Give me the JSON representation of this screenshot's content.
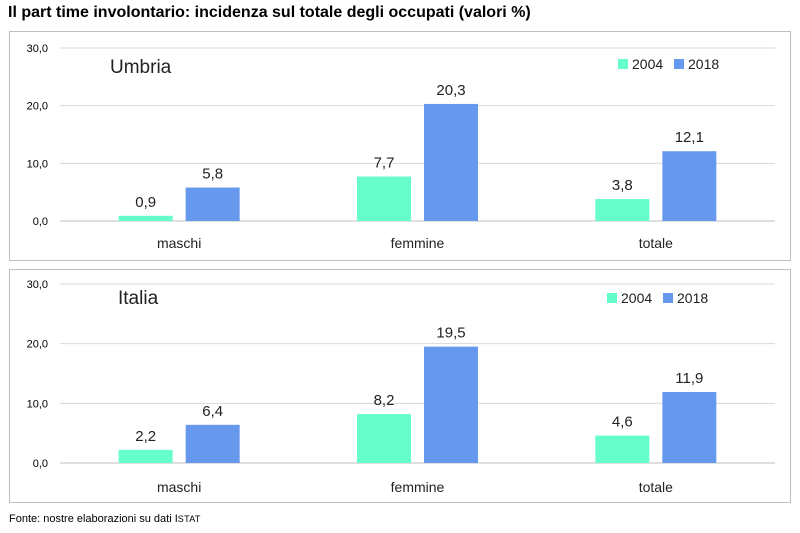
{
  "title": "Il part time involontario: incidenza sul totale degli occupati (valori %)",
  "source": {
    "prefix": "Fonte: nostre elaborazioni su dati ",
    "initial": "I",
    "rest": "STAT"
  },
  "colors": {
    "s2004": "#66ffcc",
    "s2018": "#6699ee",
    "grid": "#d9d9d9",
    "axis": "#bfbfbf"
  },
  "chart_data": [
    {
      "type": "bar",
      "title": "Umbria",
      "categories": [
        "maschi",
        "femmine",
        "totale"
      ],
      "series": [
        {
          "name": "2004",
          "values": [
            0.9,
            7.7,
            3.8
          ],
          "labels": [
            "0,9",
            "7,7",
            "3,8"
          ]
        },
        {
          "name": "2018",
          "values": [
            5.8,
            20.3,
            12.1
          ],
          "labels": [
            "5,8",
            "20,3",
            "12,1"
          ]
        }
      ],
      "ylim": [
        0,
        30
      ],
      "yticks": [
        0,
        10,
        20,
        30
      ],
      "ytick_labels": [
        "0,0",
        "10,0",
        "20,0",
        "30,0"
      ],
      "grid": true,
      "legend": "top-right"
    },
    {
      "type": "bar",
      "title": "Italia",
      "categories": [
        "maschi",
        "femmine",
        "totale"
      ],
      "series": [
        {
          "name": "2004",
          "values": [
            2.2,
            8.2,
            4.6
          ],
          "labels": [
            "2,2",
            "8,2",
            "4,6"
          ]
        },
        {
          "name": "2018",
          "values": [
            6.4,
            19.5,
            11.9
          ],
          "labels": [
            "6,4",
            "19,5",
            "11,9"
          ]
        }
      ],
      "ylim": [
        0,
        30
      ],
      "yticks": [
        0,
        10,
        20,
        30
      ],
      "ytick_labels": [
        "0,0",
        "10,0",
        "20,0",
        "30,0"
      ],
      "grid": true,
      "legend": "top-right"
    }
  ]
}
